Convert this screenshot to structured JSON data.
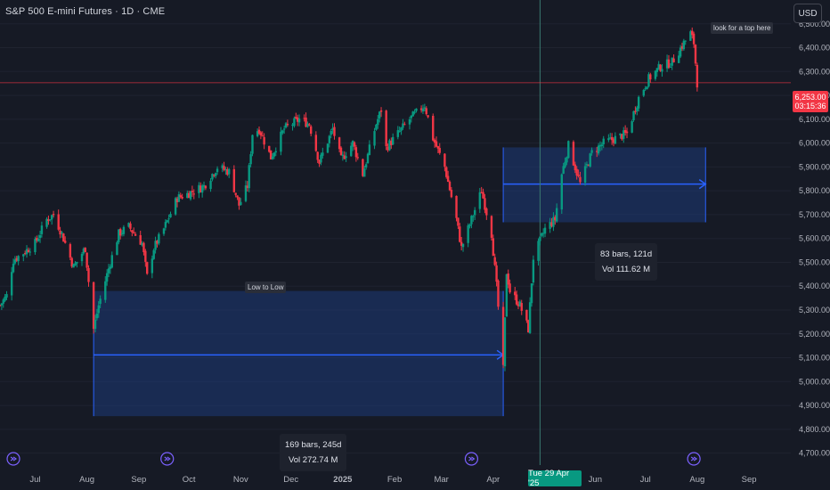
{
  "header": {
    "title": "S&P 500 E-mini Futures · 1D · CME"
  },
  "currency_button": {
    "label": "USD"
  },
  "annotations": {
    "top_note": "look for a top here",
    "range_label": "Low to Low"
  },
  "measure_long": {
    "bars": "169 bars, 245d",
    "vol": "Vol 272.74 M"
  },
  "measure_short": {
    "bars": "83 bars, 121d",
    "vol": "Vol 111.62 M"
  },
  "last_price": {
    "value": "6,253.00",
    "countdown": "03:15:36"
  },
  "crosshair": {
    "date_label": "Tue 29 Apr '25"
  },
  "colors": {
    "background": "#161a25",
    "up": "#089981",
    "down": "#f23645",
    "measure_fill": "#1e3a78",
    "measure_line": "#2962ff",
    "crosshair": "#3a7a70"
  },
  "chart_data": {
    "type": "candlestick",
    "title": "S&P 500 E-mini Futures · 1D · CME",
    "y_axis": {
      "range": [
        4650,
        6600
      ],
      "ticks": [
        4700,
        4800,
        4900,
        5000,
        5100,
        5200,
        5300,
        5400,
        5500,
        5600,
        5700,
        5800,
        5900,
        6000,
        6100,
        6200,
        6300,
        6400,
        6500
      ],
      "tick_labels": [
        "4,700.00",
        "4,800.00",
        "4,900.00",
        "5,000.00",
        "5,100.00",
        "5,200.00",
        "5,300.00",
        "5,400.00",
        "5,500.00",
        "5,600.00",
        "5,700.00",
        "5,800.00",
        "5,900.00",
        "6,000.00",
        "6,100.00",
        "6,200.00",
        "6,300.00",
        "6,400.00",
        "6,500.00"
      ]
    },
    "x_axis": {
      "start": "2024-06-10",
      "end": "2025-09-26",
      "ticks": [
        {
          "date": "2024-07-01",
          "label": "Jul"
        },
        {
          "date": "2024-08-01",
          "label": "Aug"
        },
        {
          "date": "2024-09-01",
          "label": "Sep"
        },
        {
          "date": "2024-10-01",
          "label": "Oct"
        },
        {
          "date": "2024-11-01",
          "label": "Nov"
        },
        {
          "date": "2024-12-01",
          "label": "Dec"
        },
        {
          "date": "2025-01-01",
          "label": "2025"
        },
        {
          "date": "2025-02-01",
          "label": "Feb"
        },
        {
          "date": "2025-03-01",
          "label": "Mar"
        },
        {
          "date": "2025-04-01",
          "label": "Apr"
        },
        {
          "date": "2025-06-01",
          "label": "Jun"
        },
        {
          "date": "2025-07-01",
          "label": "Jul"
        },
        {
          "date": "2025-08-01",
          "label": "Aug"
        },
        {
          "date": "2025-09-01",
          "label": "Sep"
        }
      ]
    },
    "price_path": [
      [
        "2024-06-10",
        5320
      ],
      [
        "2024-06-14",
        5360
      ],
      [
        "2024-06-18",
        5510
      ],
      [
        "2024-06-24",
        5540
      ],
      [
        "2024-07-01",
        5580
      ],
      [
        "2024-07-08",
        5680
      ],
      [
        "2024-07-12",
        5700
      ],
      [
        "2024-07-17",
        5620
      ],
      [
        "2024-07-24",
        5480
      ],
      [
        "2024-07-31",
        5560
      ],
      [
        "2024-08-02",
        5420
      ],
      [
        "2024-08-05",
        5220
      ],
      [
        "2024-08-08",
        5320
      ],
      [
        "2024-08-15",
        5500
      ],
      [
        "2024-08-20",
        5620
      ],
      [
        "2024-08-26",
        5650
      ],
      [
        "2024-09-03",
        5580
      ],
      [
        "2024-09-06",
        5440
      ],
      [
        "2024-09-10",
        5560
      ],
      [
        "2024-09-16",
        5640
      ],
      [
        "2024-09-24",
        5770
      ],
      [
        "2024-10-01",
        5790
      ],
      [
        "2024-10-10",
        5820
      ],
      [
        "2024-10-18",
        5900
      ],
      [
        "2024-10-25",
        5880
      ],
      [
        "2024-10-31",
        5740
      ],
      [
        "2024-11-05",
        5820
      ],
      [
        "2024-11-08",
        6040
      ],
      [
        "2024-11-12",
        6060
      ],
      [
        "2024-11-19",
        5940
      ],
      [
        "2024-11-27",
        6060
      ],
      [
        "2024-12-06",
        6100
      ],
      [
        "2024-12-12",
        6080
      ],
      [
        "2024-12-18",
        5920
      ],
      [
        "2024-12-26",
        6060
      ],
      [
        "2024-12-31",
        5930
      ],
      [
        "2025-01-07",
        6000
      ],
      [
        "2025-01-13",
        5870
      ],
      [
        "2025-01-21",
        6080
      ],
      [
        "2025-01-24",
        6140
      ],
      [
        "2025-01-27",
        5980
      ],
      [
        "2025-02-03",
        6040
      ],
      [
        "2025-02-10",
        6100
      ],
      [
        "2025-02-19",
        6160
      ],
      [
        "2025-02-24",
        6020
      ],
      [
        "2025-03-03",
        5900
      ],
      [
        "2025-03-10",
        5680
      ],
      [
        "2025-03-13",
        5560
      ],
      [
        "2025-03-20",
        5700
      ],
      [
        "2025-03-25",
        5800
      ],
      [
        "2025-03-31",
        5620
      ],
      [
        "2025-04-03",
        5400
      ],
      [
        "2025-04-07",
        5050
      ],
      [
        "2025-04-09",
        5460
      ],
      [
        "2025-04-11",
        5380
      ],
      [
        "2025-04-17",
        5320
      ],
      [
        "2025-04-22",
        5220
      ],
      [
        "2025-04-25",
        5520
      ],
      [
        "2025-05-02",
        5640
      ],
      [
        "2025-05-08",
        5680
      ],
      [
        "2025-05-12",
        5870
      ],
      [
        "2025-05-16",
        5990
      ],
      [
        "2025-05-23",
        5830
      ],
      [
        "2025-05-30",
        5960
      ],
      [
        "2025-06-06",
        6000
      ],
      [
        "2025-06-13",
        6020
      ],
      [
        "2025-06-20",
        6040
      ],
      [
        "2025-06-27",
        6190
      ],
      [
        "2025-07-03",
        6270
      ],
      [
        "2025-07-10",
        6320
      ],
      [
        "2025-07-17",
        6340
      ],
      [
        "2025-07-24",
        6420
      ],
      [
        "2025-07-28",
        6460
      ],
      [
        "2025-07-30",
        6420
      ],
      [
        "2025-08-01",
        6253
      ]
    ],
    "measurements": [
      {
        "start": "2024-08-05",
        "end": "2025-04-07",
        "low": 4855,
        "high": 5380,
        "mid": 5112,
        "bars": 169,
        "days": 245,
        "volume": "272.74M"
      },
      {
        "start": "2025-04-07",
        "end": "2025-08-06",
        "low": 5668,
        "high": 5982,
        "mid": 5828,
        "bars": 83,
        "days": 121,
        "volume": "111.62M"
      }
    ],
    "last_price": 6253.0,
    "crosshair_date": "2025-04-29"
  }
}
